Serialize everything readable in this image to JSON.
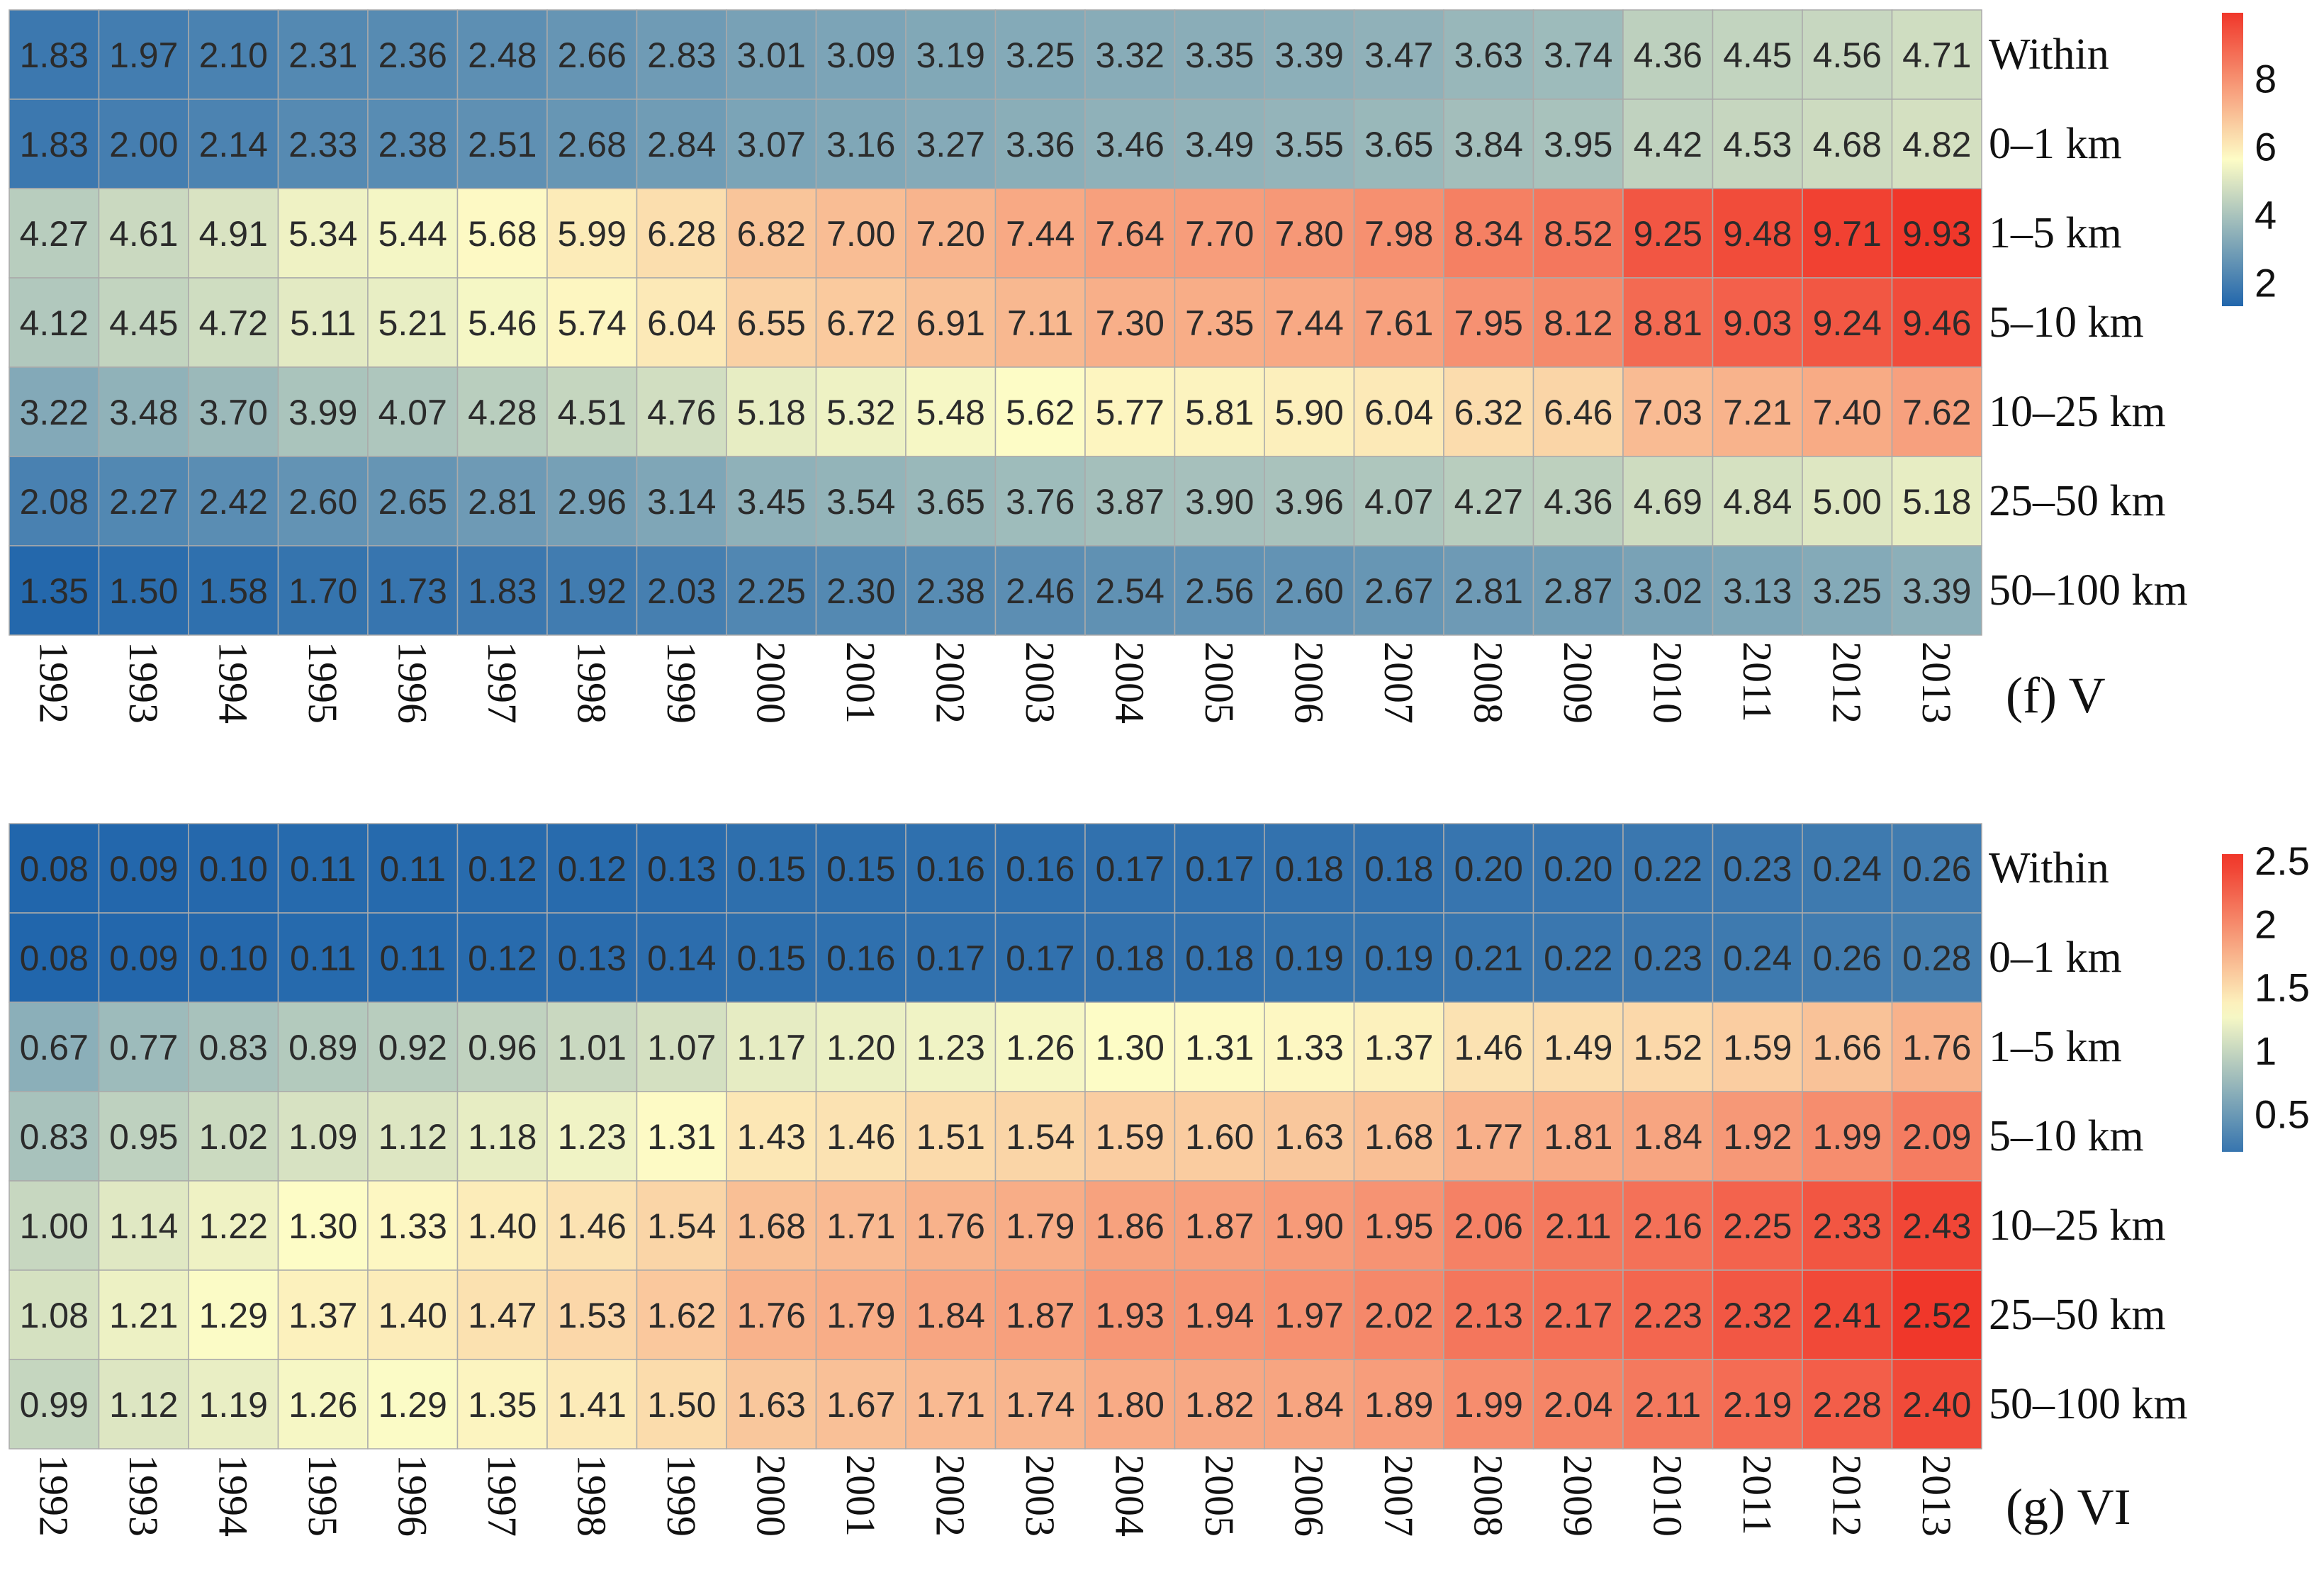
{
  "chart_data": [
    {
      "type": "heatmap",
      "panel_label": "(f) V",
      "years": [
        "1992",
        "1993",
        "1994",
        "1995",
        "1996",
        "1997",
        "1998",
        "1999",
        "2000",
        "2001",
        "2002",
        "2003",
        "2004",
        "2005",
        "2006",
        "2007",
        "2008",
        "2009",
        "2010",
        "2011",
        "2012",
        "2013"
      ],
      "rows": [
        "Within",
        "0–1 km",
        "1–5 km",
        "5–10 km",
        "10–25 km",
        "25–50 km",
        "50–100 km"
      ],
      "values": [
        [
          "1.83",
          "1.97",
          "2.10",
          "2.31",
          "2.36",
          "2.48",
          "2.66",
          "2.83",
          "3.01",
          "3.09",
          "3.19",
          "3.25",
          "3.32",
          "3.35",
          "3.39",
          "3.47",
          "3.63",
          "3.74",
          "4.36",
          "4.45",
          "4.56",
          "4.71"
        ],
        [
          "1.83",
          "2.00",
          "2.14",
          "2.33",
          "2.38",
          "2.51",
          "2.68",
          "2.84",
          "3.07",
          "3.16",
          "3.27",
          "3.36",
          "3.46",
          "3.49",
          "3.55",
          "3.65",
          "3.84",
          "3.95",
          "4.42",
          "4.53",
          "4.68",
          "4.82"
        ],
        [
          "4.27",
          "4.61",
          "4.91",
          "5.34",
          "5.44",
          "5.68",
          "5.99",
          "6.28",
          "6.82",
          "7.00",
          "7.20",
          "7.44",
          "7.64",
          "7.70",
          "7.80",
          "7.98",
          "8.34",
          "8.52",
          "9.25",
          "9.48",
          "9.71",
          "9.93"
        ],
        [
          "4.12",
          "4.45",
          "4.72",
          "5.11",
          "5.21",
          "5.46",
          "5.74",
          "6.04",
          "6.55",
          "6.72",
          "6.91",
          "7.11",
          "7.30",
          "7.35",
          "7.44",
          "7.61",
          "7.95",
          "8.12",
          "8.81",
          "9.03",
          "9.24",
          "9.46"
        ],
        [
          "3.22",
          "3.48",
          "3.70",
          "3.99",
          "4.07",
          "4.28",
          "4.51",
          "4.76",
          "5.18",
          "5.32",
          "5.48",
          "5.62",
          "5.77",
          "5.81",
          "5.90",
          "6.04",
          "6.32",
          "6.46",
          "7.03",
          "7.21",
          "7.40",
          "7.62"
        ],
        [
          "2.08",
          "2.27",
          "2.42",
          "2.60",
          "2.65",
          "2.81",
          "2.96",
          "3.14",
          "3.45",
          "3.54",
          "3.65",
          "3.76",
          "3.87",
          "3.90",
          "3.96",
          "4.07",
          "4.27",
          "4.36",
          "4.69",
          "4.84",
          "5.00",
          "5.18"
        ],
        [
          "1.35",
          "1.50",
          "1.58",
          "1.70",
          "1.73",
          "1.83",
          "1.92",
          "2.03",
          "2.25",
          "2.30",
          "2.38",
          "2.46",
          "2.54",
          "2.56",
          "2.60",
          "2.67",
          "2.81",
          "2.87",
          "3.02",
          "3.13",
          "3.25",
          "3.39"
        ]
      ],
      "color_range": [
        1.3,
        9.93
      ],
      "colorbar_range": [
        1.3,
        9.93
      ],
      "colorbar_ticks": [
        "2",
        "4",
        "6",
        "8"
      ],
      "colorbar_tick_values": [
        2,
        4,
        6,
        8
      ]
    },
    {
      "type": "heatmap",
      "panel_label": "(g) VI",
      "years": [
        "1992",
        "1993",
        "1994",
        "1995",
        "1996",
        "1997",
        "1998",
        "1999",
        "2000",
        "2001",
        "2002",
        "2003",
        "2004",
        "2005",
        "2006",
        "2007",
        "2008",
        "2009",
        "2010",
        "2011",
        "2012",
        "2013"
      ],
      "rows": [
        "Within",
        "0–1 km",
        "1–5 km",
        "5–10 km",
        "10–25 km",
        "25–50 km",
        "50–100 km"
      ],
      "values": [
        [
          "0.08",
          "0.09",
          "0.10",
          "0.11",
          "0.11",
          "0.12",
          "0.12",
          "0.13",
          "0.15",
          "0.15",
          "0.16",
          "0.16",
          "0.17",
          "0.17",
          "0.18",
          "0.18",
          "0.20",
          "0.20",
          "0.22",
          "0.23",
          "0.24",
          "0.26"
        ],
        [
          "0.08",
          "0.09",
          "0.10",
          "0.11",
          "0.11",
          "0.12",
          "0.13",
          "0.14",
          "0.15",
          "0.16",
          "0.17",
          "0.17",
          "0.18",
          "0.18",
          "0.19",
          "0.19",
          "0.21",
          "0.22",
          "0.23",
          "0.24",
          "0.26",
          "0.28"
        ],
        [
          "0.67",
          "0.77",
          "0.83",
          "0.89",
          "0.92",
          "0.96",
          "1.01",
          "1.07",
          "1.17",
          "1.20",
          "1.23",
          "1.26",
          "1.30",
          "1.31",
          "1.33",
          "1.37",
          "1.46",
          "1.49",
          "1.52",
          "1.59",
          "1.66",
          "1.76"
        ],
        [
          "0.83",
          "0.95",
          "1.02",
          "1.09",
          "1.12",
          "1.18",
          "1.23",
          "1.31",
          "1.43",
          "1.46",
          "1.51",
          "1.54",
          "1.59",
          "1.60",
          "1.63",
          "1.68",
          "1.77",
          "1.81",
          "1.84",
          "1.92",
          "1.99",
          "2.09"
        ],
        [
          "1.00",
          "1.14",
          "1.22",
          "1.30",
          "1.33",
          "1.40",
          "1.46",
          "1.54",
          "1.68",
          "1.71",
          "1.76",
          "1.79",
          "1.86",
          "1.87",
          "1.90",
          "1.95",
          "2.06",
          "2.11",
          "2.16",
          "2.25",
          "2.33",
          "2.43"
        ],
        [
          "1.08",
          "1.21",
          "1.29",
          "1.37",
          "1.40",
          "1.47",
          "1.53",
          "1.62",
          "1.76",
          "1.79",
          "1.84",
          "1.87",
          "1.93",
          "1.94",
          "1.97",
          "2.02",
          "2.13",
          "2.17",
          "2.23",
          "2.32",
          "2.41",
          "2.52"
        ],
        [
          "0.99",
          "1.12",
          "1.19",
          "1.26",
          "1.29",
          "1.35",
          "1.41",
          "1.50",
          "1.63",
          "1.67",
          "1.71",
          "1.74",
          "1.80",
          "1.82",
          "1.84",
          "1.89",
          "1.99",
          "2.04",
          "2.11",
          "2.19",
          "2.28",
          "2.40"
        ]
      ],
      "color_range": [
        0.08,
        2.52
      ],
      "colorbar_range": [
        0.2,
        2.55
      ],
      "colorbar_ticks": [
        "0.5",
        "1",
        "1.5",
        "2",
        "2.5"
      ],
      "colorbar_tick_values": [
        0.5,
        1,
        1.5,
        2,
        2.5
      ]
    }
  ],
  "colors": {
    "low": "#2166ac",
    "mid": "#fdfcc6",
    "high": "#f0372a",
    "grid": "#aaaaaa",
    "text": "#2b2b2b"
  }
}
